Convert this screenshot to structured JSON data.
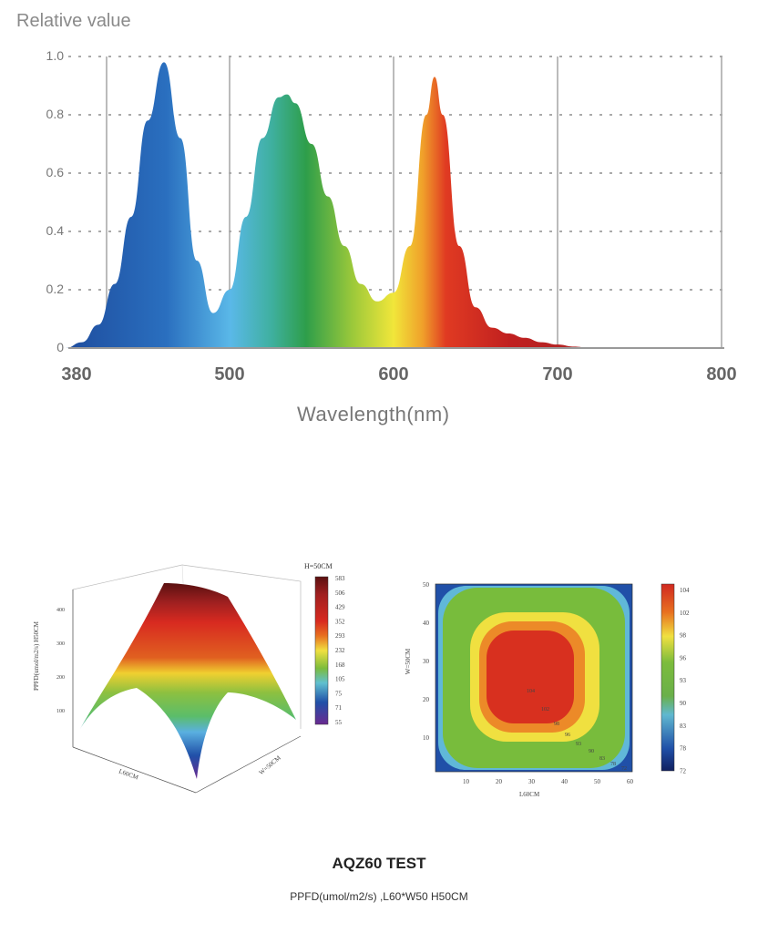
{
  "chart_data": [
    {
      "type": "area",
      "title": "",
      "ylabel": "Relative value",
      "xlabel": "Wavelength(nm)",
      "x_ticks": [
        "380",
        "500",
        "600",
        "700",
        "800"
      ],
      "y_ticks": [
        "0",
        "0.2",
        "0.4",
        "0.6",
        "0.8",
        "1.0"
      ],
      "ylim": [
        0,
        1
      ],
      "xlim": [
        380,
        800
      ],
      "grid": true,
      "x": [
        400,
        410,
        420,
        430,
        440,
        450,
        460,
        470,
        480,
        490,
        500,
        510,
        520,
        530,
        535,
        540,
        550,
        560,
        570,
        580,
        590,
        600,
        610,
        620,
        625,
        630,
        640,
        650,
        660,
        670,
        680,
        690,
        700,
        710,
        720
      ],
      "y": [
        0,
        0.02,
        0.08,
        0.22,
        0.45,
        0.78,
        0.98,
        0.72,
        0.3,
        0.12,
        0.2,
        0.45,
        0.72,
        0.86,
        0.87,
        0.84,
        0.7,
        0.52,
        0.35,
        0.22,
        0.16,
        0.19,
        0.35,
        0.8,
        0.93,
        0.8,
        0.35,
        0.14,
        0.07,
        0.05,
        0.035,
        0.02,
        0.012,
        0.005,
        0
      ]
    },
    {
      "type": "surface3d",
      "colorbar_title": "H=50CM",
      "colorbar_ticks": [
        "583",
        "506",
        "429",
        "352",
        "293",
        "232",
        "168",
        "105",
        "75",
        "71",
        "55"
      ],
      "z_ticks": [
        "100",
        "200",
        "300",
        "400"
      ],
      "x_label": "L60CM",
      "y_label": "W=50CM",
      "z_label": "PPFD(umol/m2/s) H50CM"
    },
    {
      "type": "heatmap",
      "xlabel": "L60CM",
      "ylabel": "W=50CM",
      "x_ticks": [
        "10",
        "20",
        "30",
        "40",
        "50",
        "60"
      ],
      "y_ticks": [
        "10",
        "20",
        "30",
        "40",
        "50"
      ],
      "colorbar_ticks": [
        "104",
        "102",
        "98",
        "96",
        "93",
        "90",
        "83",
        "78",
        "72"
      ],
      "contour_labels": [
        "104",
        "102",
        "98",
        "96",
        "93",
        "90",
        "83",
        "78",
        "72"
      ]
    }
  ],
  "footer": {
    "title": "AQZ60  TEST",
    "subtitle": "PPFD(umol/m2/s) ,L60*W50 H50CM"
  }
}
